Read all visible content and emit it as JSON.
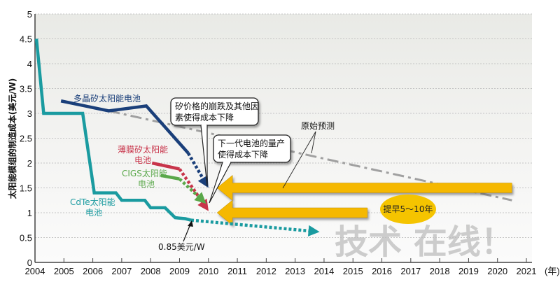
{
  "chart_data": {
    "type": "line",
    "title": "",
    "xlabel": "(年)",
    "ylabel": "太阳能模组的制造成本(美元/W)",
    "xlim": [
      2004,
      2021
    ],
    "ylim": [
      0,
      5
    ],
    "x_ticks": [
      "2004",
      "2005",
      "2006",
      "2007",
      "2008",
      "2009",
      "2010",
      "2011",
      "2012",
      "2013",
      "2014",
      "2015",
      "2016",
      "2017",
      "2018",
      "2019",
      "2020",
      "2021"
    ],
    "y_ticks": [
      "0",
      "0.5",
      "1",
      "1.5",
      "2",
      "2.5",
      "3",
      "3.5",
      "4",
      "4.5",
      "5"
    ],
    "grid": true,
    "series": [
      {
        "name": "多晶矽太阳能电池",
        "color": "#1a3f7a",
        "points": [
          [
            2004.9,
            3.25
          ],
          [
            2006.55,
            3.05
          ],
          [
            2007.85,
            3.15
          ],
          [
            2009.3,
            2.2
          ]
        ],
        "projection": [
          [
            2009.3,
            2.2
          ],
          [
            2009.95,
            1.55
          ]
        ]
      },
      {
        "name": "薄膜矽太阳能电池",
        "color": "#c8344a",
        "points": [
          [
            2008.05,
            2.0
          ],
          [
            2009.0,
            1.88
          ]
        ],
        "projection": [
          [
            2009.0,
            1.88
          ],
          [
            2009.95,
            1.08
          ]
        ]
      },
      {
        "name": "CIGS太阳能电池",
        "color": "#5aa84a",
        "points": [
          [
            2008.35,
            1.75
          ],
          [
            2009.0,
            1.68
          ]
        ],
        "projection": [
          [
            2009.0,
            1.68
          ],
          [
            2009.85,
            1.22
          ]
        ]
      },
      {
        "name": "CdTe太阳能电池",
        "color": "#1a9ba0",
        "points": [
          [
            2004.05,
            4.5
          ],
          [
            2004.3,
            3.0
          ],
          [
            2005.65,
            3.0
          ],
          [
            2006.05,
            1.4
          ],
          [
            2006.8,
            1.4
          ],
          [
            2007.0,
            1.25
          ],
          [
            2007.8,
            1.25
          ],
          [
            2008.0,
            1.1
          ],
          [
            2008.5,
            1.1
          ],
          [
            2008.85,
            0.9
          ],
          [
            2009.2,
            0.88
          ],
          [
            2009.4,
            0.85
          ]
        ],
        "projection": [
          [
            2009.4,
            0.85
          ],
          [
            2013.75,
            0.62
          ]
        ]
      }
    ],
    "original_forecast": {
      "name": "原始预测",
      "color": "#a0a0a0",
      "points": [
        [
          2006.55,
          3.05
        ],
        [
          2020.5,
          1.25
        ]
      ]
    },
    "arrows": [
      {
        "name": "提前5~10年 (top)",
        "from_x": 2020.5,
        "to_x": 2010.3,
        "y": 1.5,
        "color": "#f5b800"
      },
      {
        "name": "提前5~10年 (bottom)",
        "from_x": 2015.5,
        "to_x": 2010.3,
        "y": 1.0,
        "color": "#f5b800"
      }
    ],
    "annotations": {
      "callout_1": "矽价格的崩跌及其他因素使得成本下降",
      "callout_1_line1": "矽价格的崩跌及其他因",
      "callout_1_line2": "素使得成本下降",
      "callout_2_line1": "下一代电池的量产",
      "callout_2_line2": "使得成本下降",
      "original_forecast_label": "原始预测",
      "ellipse_label": "提早5～10年",
      "cdte_price_label": "0.85美元/W",
      "poly_label": "多晶矽太阳能电池",
      "thin_film_label_1": "薄膜矽太阳能",
      "thin_film_label_2": "电池",
      "cigs_label_1": "CIGS太阳能",
      "cigs_label_2": "电池",
      "cdte_label_1": "CdTe太阳能",
      "cdte_label_2": "电池",
      "watermark": "技术 在线！"
    },
    "legend": "none"
  }
}
